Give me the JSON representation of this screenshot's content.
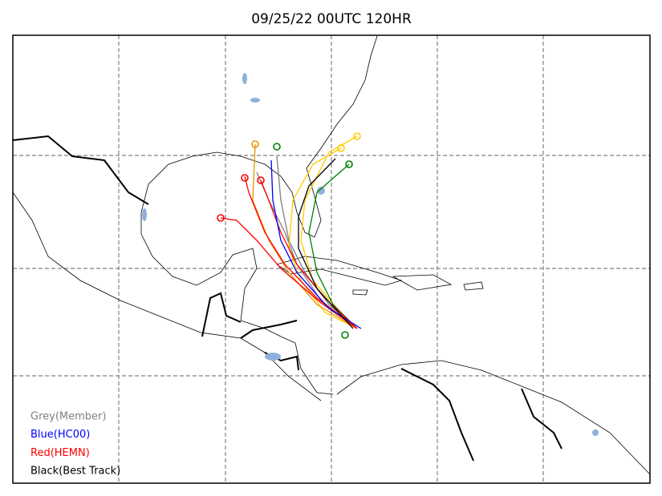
{
  "title": "09/25/22 00UTC 120HR",
  "legend": [
    {
      "label": "Grey(Member)",
      "color": "#808080"
    },
    {
      "label": "Blue(HC00)",
      "color": "#0000ff"
    },
    {
      "label": "Red(HEMN)",
      "color": "#ff0000"
    },
    {
      "label": "Black(Best Track)",
      "color": "#000000"
    }
  ]
}
